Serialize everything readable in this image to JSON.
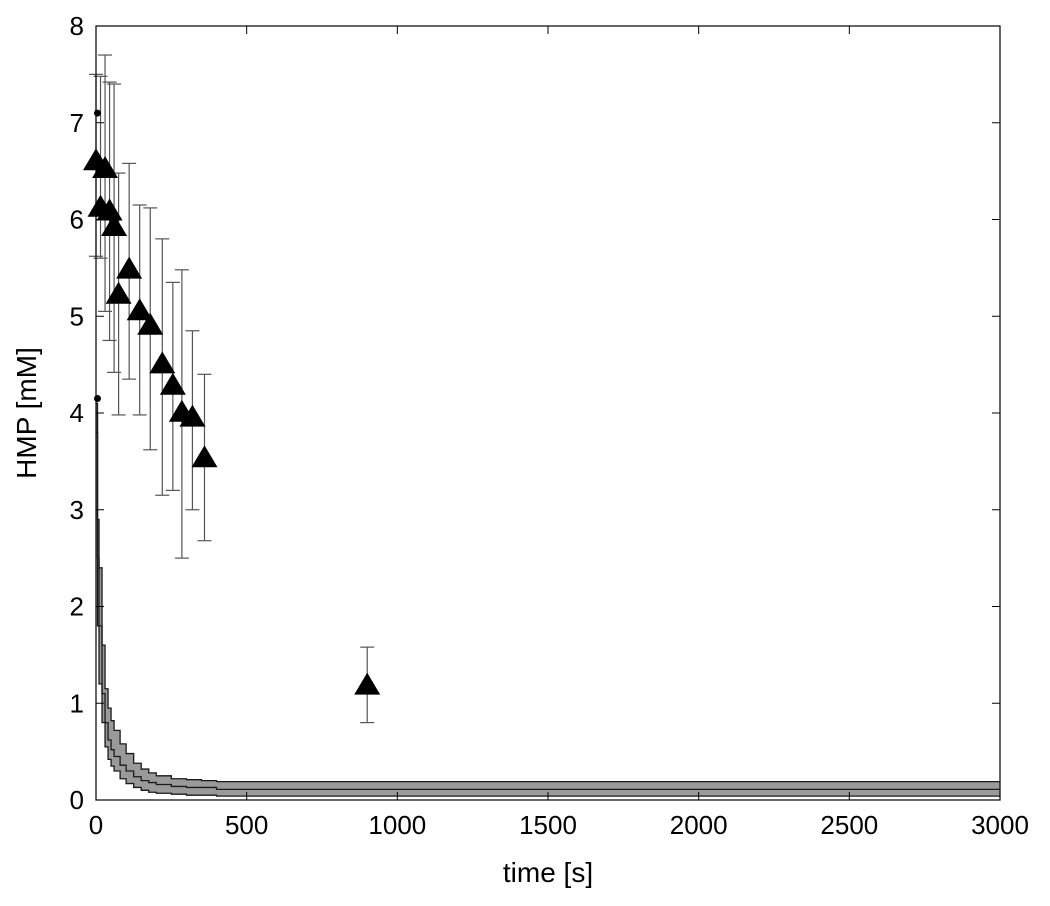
{
  "chart_data": {
    "type": "scatter",
    "title": "",
    "xlabel": "time [s]",
    "ylabel": "HMP [mM]",
    "xlim": [
      0,
      3000
    ],
    "ylim": [
      0,
      8
    ],
    "xticks": [
      0,
      500,
      1000,
      1500,
      2000,
      2500,
      3000
    ],
    "yticks": [
      0,
      1,
      2,
      3,
      4,
      5,
      6,
      7,
      8
    ],
    "grid": false,
    "legend": "none",
    "series": [
      {
        "kind": "triangles-with-error-bars",
        "x": [
          0,
          15,
          30,
          45,
          60,
          75,
          110,
          145,
          180,
          220,
          255,
          285,
          320,
          360,
          900
        ],
        "y": [
          6.6,
          6.12,
          6.52,
          6.08,
          5.92,
          5.22,
          5.48,
          5.05,
          4.9,
          4.5,
          4.28,
          4.0,
          3.95,
          3.53,
          1.18
        ],
        "err_low": [
          5.62,
          5.6,
          5.05,
          4.75,
          4.42,
          3.98,
          4.35,
          3.98,
          3.62,
          3.15,
          3.2,
          2.5,
          3.0,
          2.68,
          0.8
        ],
        "err_high": [
          7.5,
          7.48,
          7.7,
          7.42,
          7.4,
          6.48,
          6.58,
          6.15,
          6.12,
          5.8,
          5.35,
          5.48,
          4.85,
          4.4,
          1.58
        ]
      },
      {
        "kind": "outlier-dots",
        "x": [
          5,
          5
        ],
        "y": [
          7.1,
          4.15
        ]
      },
      {
        "kind": "model-band",
        "x": [
          0,
          5,
          10,
          20,
          30,
          40,
          50,
          60,
          80,
          100,
          125,
          150,
          175,
          200,
          250,
          300,
          350,
          400,
          500,
          1000,
          2000,
          3000
        ],
        "mean": [
          4.0,
          2.5,
          1.8,
          1.1,
          0.8,
          0.62,
          0.52,
          0.45,
          0.36,
          0.3,
          0.24,
          0.2,
          0.18,
          0.16,
          0.14,
          0.13,
          0.13,
          0.11,
          0.11,
          0.11,
          0.11,
          0.11
        ],
        "lower": [
          3.8,
          1.8,
          1.2,
          0.8,
          0.55,
          0.42,
          0.35,
          0.3,
          0.22,
          0.17,
          0.13,
          0.1,
          0.08,
          0.07,
          0.06,
          0.05,
          0.05,
          0.04,
          0.04,
          0.04,
          0.04,
          0.04
        ],
        "upper": [
          4.1,
          2.9,
          2.4,
          1.6,
          1.15,
          0.95,
          0.82,
          0.72,
          0.58,
          0.48,
          0.38,
          0.32,
          0.28,
          0.25,
          0.22,
          0.21,
          0.2,
          0.19,
          0.19,
          0.19,
          0.19,
          0.19
        ]
      }
    ]
  },
  "colors": {
    "band_fill": "#9a9a9a",
    "band_edge": "#1a1a1a",
    "marker": "#000000",
    "error_bar": "#555555",
    "axis": "#000000"
  }
}
